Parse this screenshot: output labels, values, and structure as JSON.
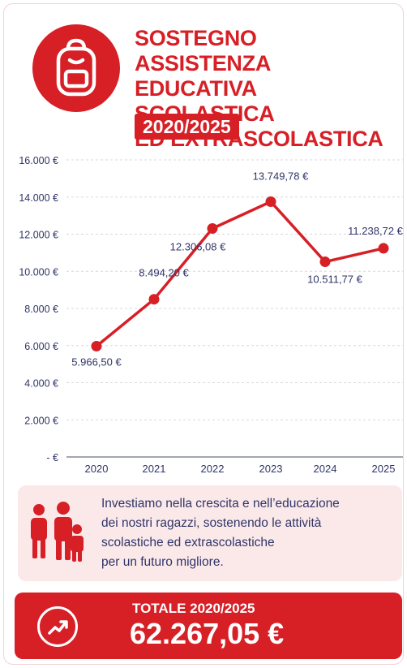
{
  "header": {
    "title_lines": [
      "SOSTEGNO ASSISTENZA",
      "EDUCATIVA SCOLASTICA",
      "ED EXTRASCOLASTICA"
    ],
    "period": "2020/2025",
    "icon": "backpack-icon"
  },
  "chart_data": {
    "type": "line",
    "x": [
      "2020",
      "2021",
      "2022",
      "2023",
      "2024",
      "2025"
    ],
    "series": [
      {
        "values": [
          5966.5,
          8494.2,
          12306.08,
          13749.78,
          10511.77,
          11238.72
        ]
      }
    ],
    "data_labels": [
      "5.966,50 €",
      "8.494,20 €",
      "12.306,08 €",
      "13.749,78 €",
      "10.511,77 €",
      "11.238,72 €"
    ],
    "y_ticks": [
      "16.000 €",
      "14.000 €",
      "12.000 €",
      "10.000 €",
      "8.000 €",
      "6.000 €",
      "4.000 €",
      "2.000 €",
      "-  €"
    ],
    "ylim": [
      0,
      16000
    ],
    "grid": true,
    "color": "#d71f26"
  },
  "info": {
    "icon": "family-icon",
    "lines": [
      "Investiamo nella crescita e nell’educazione",
      "dei nostri ragazzi, sostenendo le attività",
      "scolastiche ed extrascolastiche",
      "per un futuro migliore."
    ]
  },
  "total": {
    "icon": "trend-up-icon",
    "label": "TOTALE 2020/2025",
    "value": "62.267,05 €"
  }
}
